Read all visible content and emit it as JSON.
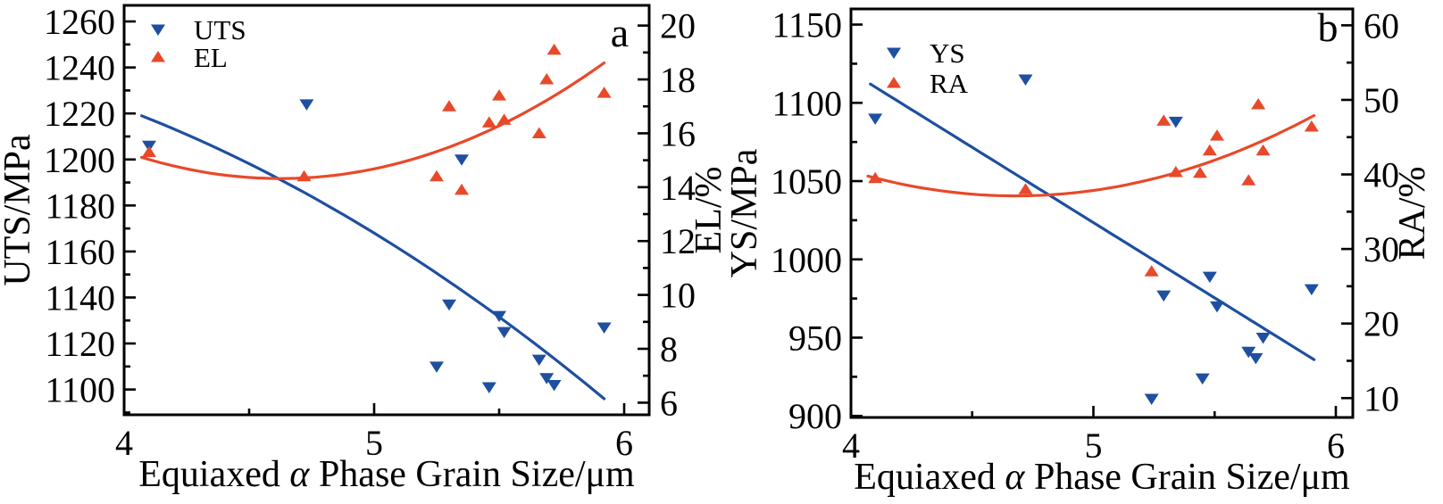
{
  "figure": {
    "background": "#ffffff",
    "text_color": "#000000",
    "blue": "#1e4fa0",
    "red": "#e8492a"
  },
  "chart_data": [
    {
      "type": "scatter",
      "panel_label": "a",
      "xlabel": "Equiaxed α Phase Grain Size/μm",
      "x_range": [
        4,
        6.1
      ],
      "x_major_ticks": [
        4,
        5,
        6
      ],
      "x_minor_ticks": [
        4.5,
        5.5
      ],
      "left_axis": {
        "label": "UTS/MPa",
        "range": [
          1089,
          1267
        ],
        "major_ticks": [
          1100,
          1120,
          1140,
          1160,
          1180,
          1200,
          1220,
          1240,
          1260
        ],
        "minor_ticks": [
          1090,
          1110,
          1130,
          1150,
          1170,
          1190,
          1210,
          1230,
          1250
        ]
      },
      "right_axis": {
        "label": "EL/%",
        "range": [
          5.55,
          20.75
        ],
        "major_ticks": [
          6,
          8,
          10,
          12,
          14,
          16,
          18,
          20
        ],
        "minor_ticks": [
          7,
          9,
          11,
          13,
          15,
          17,
          19
        ]
      },
      "series": [
        {
          "name": "UTS",
          "axis": "left",
          "marker": "triangle-down",
          "color": "#1e4fa0",
          "points": [
            [
              4.1,
              1206
            ],
            [
              4.73,
              1224
            ],
            [
              5.25,
              1110
            ],
            [
              5.3,
              1137
            ],
            [
              5.35,
              1200
            ],
            [
              5.46,
              1101
            ],
            [
              5.5,
              1132
            ],
            [
              5.52,
              1125
            ],
            [
              5.66,
              1113
            ],
            [
              5.69,
              1105
            ],
            [
              5.72,
              1102
            ],
            [
              5.92,
              1127
            ]
          ]
        },
        {
          "name": "EL",
          "axis": "right",
          "marker": "triangle-up",
          "color": "#e8492a",
          "points": [
            [
              4.1,
              15.3
            ],
            [
              4.72,
              14.4
            ],
            [
              5.25,
              14.4
            ],
            [
              5.3,
              17.0
            ],
            [
              5.35,
              13.9
            ],
            [
              5.46,
              16.4
            ],
            [
              5.5,
              17.4
            ],
            [
              5.52,
              16.5
            ],
            [
              5.66,
              16.0
            ],
            [
              5.69,
              18.0
            ],
            [
              5.72,
              19.1
            ],
            [
              5.92,
              17.5
            ]
          ]
        }
      ],
      "trend_lines": [
        {
          "series": "UTS",
          "axis": "left",
          "color": "#1e4fa0",
          "poly": [
            1184.6,
            59.98,
            -12.66
          ],
          "x_start": 4.07,
          "x_end": 5.92
        },
        {
          "series": "EL",
          "axis": "right",
          "color": "#e8492a",
          "poly": [
            69.08,
            -23.68,
            2.56
          ],
          "x_start": 4.07,
          "x_end": 5.92
        }
      ],
      "legend": [
        "UTS",
        "EL"
      ]
    },
    {
      "type": "scatter",
      "panel_label": "b",
      "xlabel": "Equiaxed α Phase Grain Size/μm",
      "x_range": [
        4,
        6.07
      ],
      "x_major_ticks": [
        4,
        5,
        6
      ],
      "x_minor_ticks": [
        4.5,
        5.5
      ],
      "left_axis": {
        "label": "YS/MPa",
        "range": [
          899,
          1160
        ],
        "major_ticks": [
          900,
          950,
          1000,
          1050,
          1100,
          1150
        ],
        "minor_ticks": [
          925,
          975,
          1025,
          1075,
          1125
        ]
      },
      "right_axis": {
        "label": "RA/%",
        "range": [
          7.4,
          62.2
        ],
        "major_ticks": [
          10,
          20,
          30,
          40,
          50,
          60
        ],
        "minor_ticks": [
          15,
          25,
          35,
          45,
          55
        ]
      },
      "series": [
        {
          "name": "YS",
          "axis": "left",
          "marker": "triangle-down",
          "color": "#1e4fa0",
          "points": [
            [
              4.1,
              1090
            ],
            [
              4.72,
              1115
            ],
            [
              5.24,
              911
            ],
            [
              5.29,
              977
            ],
            [
              5.34,
              1088
            ],
            [
              5.45,
              924
            ],
            [
              5.48,
              989
            ],
            [
              5.51,
              970
            ],
            [
              5.64,
              941
            ],
            [
              5.67,
              937
            ],
            [
              5.7,
              950
            ],
            [
              5.9,
              981
            ]
          ]
        },
        {
          "name": "RA",
          "axis": "right",
          "marker": "triangle-up",
          "color": "#e8492a",
          "points": [
            [
              4.1,
              39.5
            ],
            [
              4.72,
              38.0
            ],
            [
              5.24,
              27.0
            ],
            [
              5.29,
              47.2
            ],
            [
              5.34,
              40.3
            ],
            [
              5.44,
              40.2
            ],
            [
              5.48,
              43.2
            ],
            [
              5.51,
              45.2
            ],
            [
              5.64,
              39.2
            ],
            [
              5.68,
              49.4
            ],
            [
              5.7,
              43.2
            ],
            [
              5.9,
              46.4
            ]
          ]
        }
      ],
      "trend_lines": [
        {
          "series": "YS",
          "axis": "left",
          "color": "#1e4fa0",
          "poly": [
            1504.5,
            -96.2,
            0
          ],
          "x_start": 4.08,
          "x_end": 5.91
        },
        {
          "series": "RA",
          "axis": "right",
          "color": "#e8492a",
          "poly": [
            193.3,
            -66.74,
            7.13
          ],
          "x_start": 4.07,
          "x_end": 5.91
        }
      ],
      "legend": [
        "YS",
        "RA"
      ]
    }
  ]
}
